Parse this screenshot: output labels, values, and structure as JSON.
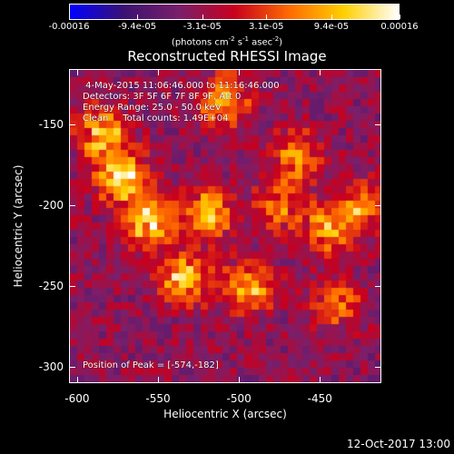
{
  "chart_data": {
    "type": "heatmap",
    "title": "Reconstructed RHESSI Image",
    "xlabel": "Heliocentric X (arcsec)",
    "ylabel": "Heliocentric Y (arcsec)",
    "xlim": [
      -605,
      -412
    ],
    "ylim": [
      -310,
      -116
    ],
    "x_ticks": [
      -600,
      -550,
      -500,
      -450
    ],
    "y_ticks": [
      -150,
      -200,
      -250,
      -300
    ],
    "colorbar": {
      "min": -0.00016,
      "max": 0.00016,
      "tick_values": [
        -0.00016,
        -9.4e-05,
        -3.1e-05,
        3.1e-05,
        9.4e-05,
        0.00016
      ],
      "tick_labels": [
        "-0.00016",
        "-9.4e-05",
        "-3.1e-05",
        "3.1e-05",
        "9.4e-05",
        "0.00016"
      ],
      "unit_label": "(photons cm",
      "unit_sup1": "-2",
      "unit_mid1": " s",
      "unit_sup2": "-1",
      "unit_mid2": " asec",
      "unit_sup3": "-2",
      "unit_end": ")"
    },
    "annotations": {
      "time_range": " 4-May-2015 11:06:46.000 to 11:16:46.000",
      "detectors": "Detectors: 3F 5F 6F 7F 8F 9F, Att 0",
      "energy_range": "Energy Range: 25.0 - 50.0 keV",
      "clean_counts": "Clean     Total counts: 1.49E+04",
      "peak_position": "Position of Peak = [-574,-182]"
    },
    "peak": [
      -574,
      -182
    ],
    "bright_regions": [
      {
        "x": -573,
        "y": -182,
        "value": 0.00016
      },
      {
        "x": -585,
        "y": -155,
        "value": 0.00013
      },
      {
        "x": -555,
        "y": -210,
        "value": 0.00015
      },
      {
        "x": -535,
        "y": -245,
        "value": 0.00013
      },
      {
        "x": -520,
        "y": -205,
        "value": 0.00012
      },
      {
        "x": -510,
        "y": -135,
        "value": 0.00011
      },
      {
        "x": -495,
        "y": -250,
        "value": 0.00012
      },
      {
        "x": -475,
        "y": -200,
        "value": 8e-05
      },
      {
        "x": -465,
        "y": -170,
        "value": 0.0001
      },
      {
        "x": -445,
        "y": -215,
        "value": 9e-05
      },
      {
        "x": -425,
        "y": -200,
        "value": 9e-05
      },
      {
        "x": -440,
        "y": -260,
        "value": 7e-05
      }
    ],
    "background_value": -4e-05,
    "colormap": [
      "#0000ff",
      "#3b1270",
      "#7a1f6b",
      "#c8001e",
      "#ff6a00",
      "#ffd000",
      "#ffffff"
    ]
  },
  "footer": {
    "timestamp": "12-Oct-2017 13:00"
  }
}
